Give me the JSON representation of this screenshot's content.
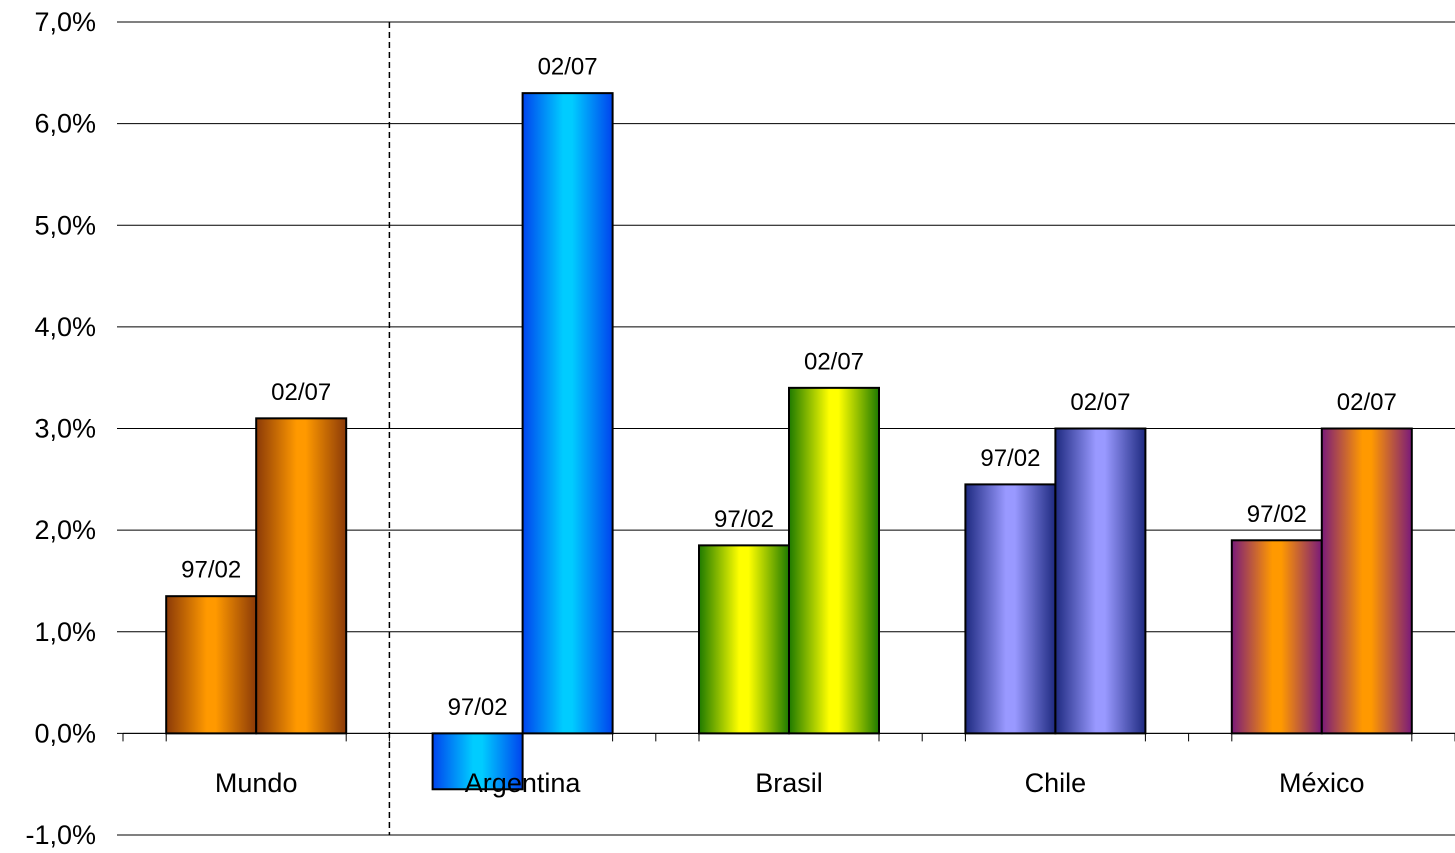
{
  "chart_data": {
    "type": "bar",
    "title": "",
    "xlabel": "",
    "ylabel": "",
    "ylim": [
      -1.0,
      7.0
    ],
    "ytick_step": 1.0,
    "yticks": [
      "-1,0%",
      "0,0%",
      "1,0%",
      "2,0%",
      "3,0%",
      "4,0%",
      "5,0%",
      "6,0%",
      "7,0%"
    ],
    "grid": true,
    "legend": "none",
    "categories": [
      "Mundo",
      "Argentina",
      "Brasil",
      "Chile",
      "México"
    ],
    "separator_after_category": "Mundo",
    "series": [
      {
        "values": [
          1.35,
          -0.55,
          1.85,
          2.45,
          1.9
        ],
        "bar_labels": [
          "97/02",
          "97/02",
          "97/02",
          "97/02",
          "97/02"
        ]
      },
      {
        "values": [
          3.1,
          6.3,
          3.4,
          3.0,
          3.0
        ],
        "bar_labels": [
          "02/07",
          "02/07",
          "02/07",
          "02/07",
          "02/07"
        ]
      }
    ],
    "colors": {
      "Mundo": {
        "dark": "#8B3A08",
        "light": "#FF9900"
      },
      "Argentina": {
        "dark": "#0044EE",
        "light": "#00CCFF"
      },
      "Brasil": {
        "dark": "#1E7A00",
        "light": "#FFFF00"
      },
      "Chile": {
        "dark": "#1E2A80",
        "light": "#9999FF"
      },
      "México": {
        "dark": "#7A1A7A",
        "light": "#FF9900"
      }
    }
  }
}
